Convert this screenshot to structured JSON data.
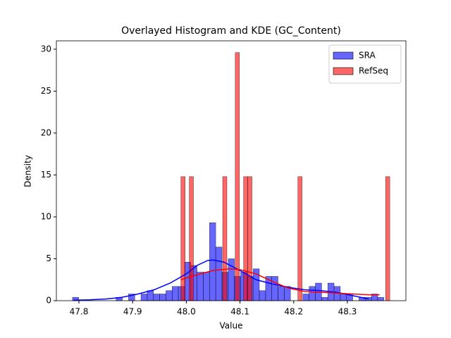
{
  "chart_data": {
    "type": "histogram",
    "title": "Overlayed Histogram and KDE (GC_Content)",
    "xlabel": "Value",
    "ylabel": "Density",
    "xlim": [
      47.758,
      48.409
    ],
    "ylim": [
      0,
      31
    ],
    "xticks": [
      47.8,
      47.9,
      {
        "value": 48,
        "label": "48.0"
      },
      48.1,
      48.2,
      48.3
    ],
    "yticks": [
      0,
      5,
      10,
      15,
      20,
      25,
      30
    ],
    "grid": false,
    "legend": "upper right",
    "series": [
      {
        "name": "SRA",
        "color": "#0000ff",
        "bins": [
          47.788,
          47.7996,
          47.8112,
          47.8228,
          47.8344,
          47.846,
          47.8576,
          47.8692,
          47.8808,
          47.8924,
          47.904,
          47.9156,
          47.9272,
          47.9388,
          47.9504,
          47.962,
          47.9736,
          47.9852,
          47.9968,
          48.0084,
          48.02,
          48.0316,
          48.0432,
          48.0548,
          48.0664,
          48.078,
          48.0896,
          48.1012,
          48.1128,
          48.1244,
          48.136,
          48.1476,
          48.1592,
          48.1708,
          48.1824,
          48.194,
          48.2056,
          48.2172,
          48.2288,
          48.2404,
          48.252,
          48.2636,
          48.2752,
          48.2868,
          48.2984,
          48.31,
          48.3216,
          48.3332,
          48.3448,
          48.3564,
          48.368
        ],
        "values": [
          0.4,
          0,
          0,
          0,
          0,
          0,
          0,
          0.4,
          0,
          0.8,
          0,
          0.8,
          1.2,
          0.8,
          0.8,
          1.2,
          1.7,
          1.7,
          4.6,
          4.2,
          3.4,
          3.4,
          9.3,
          6.4,
          3.4,
          5.0,
          2.9,
          3.4,
          2.9,
          3.8,
          1.2,
          2.9,
          2.9,
          1.7,
          1.7,
          0,
          0,
          0.8,
          1.7,
          2.1,
          0.4,
          2.1,
          1.7,
          0.8,
          0.8,
          0,
          0.4,
          0.4,
          0.8,
          0.4
        ],
        "kde_x": [
          47.79,
          47.82,
          47.85,
          47.88,
          47.91,
          47.94,
          47.97,
          48.0,
          48.02,
          48.04,
          48.05,
          48.07,
          48.1,
          48.13,
          48.16,
          48.19,
          48.22,
          48.25,
          48.28,
          48.31,
          48.34
        ],
        "kde_y": [
          0.05,
          0.1,
          0.2,
          0.4,
          0.8,
          1.3,
          2.1,
          3.2,
          4.2,
          4.8,
          4.85,
          4.6,
          3.6,
          2.5,
          2.0,
          1.6,
          1.3,
          1.2,
          1.0,
          0.6,
          0.2
        ]
      },
      {
        "name": "RefSeq",
        "color": "#ff0000",
        "bins": [
          47.99,
          47.9978,
          48.0056,
          48.0133,
          48.0211,
          48.0289,
          48.0367,
          48.0445,
          48.0522,
          48.06,
          48.0678,
          48.0756,
          48.0834,
          48.0911,
          48.0989,
          48.1067,
          48.1145,
          48.1223,
          48.13,
          48.1378,
          48.1456,
          48.1534,
          48.1612,
          48.1689,
          48.1767,
          48.1845,
          48.1923,
          48.2001,
          48.2078,
          48.2156,
          48.2234,
          48.2312,
          48.239,
          48.2467,
          48.2545,
          48.2623,
          48.2701,
          48.2779,
          48.2856,
          48.2934,
          48.3012,
          48.309,
          48.3168,
          48.3245,
          48.3323,
          48.3401,
          48.3479,
          48.3557,
          48.3634,
          48.3712,
          48.379
        ],
        "values": [
          14.8,
          0,
          14.8,
          0,
          0,
          0,
          0,
          0,
          0,
          0,
          14.8,
          0,
          0,
          29.6,
          0,
          14.8,
          14.8,
          0,
          0,
          0,
          0,
          0,
          0,
          0,
          0,
          0,
          0,
          0,
          14.8,
          0,
          0,
          0,
          0,
          0,
          0,
          0,
          0,
          0,
          0,
          0,
          0,
          0,
          0,
          0,
          0,
          0,
          0,
          0,
          0,
          14.8
        ],
        "kde_x": [
          47.99,
          48.02,
          48.05,
          48.08,
          48.1,
          48.13,
          48.16,
          48.19,
          48.22,
          48.25,
          48.28,
          48.31,
          48.34,
          48.36
        ],
        "kde_y": [
          2.5,
          3.1,
          3.6,
          3.8,
          3.7,
          3.2,
          2.3,
          1.5,
          1.1,
          1.0,
          0.9,
          0.8,
          0.7,
          0.7
        ]
      }
    ]
  }
}
